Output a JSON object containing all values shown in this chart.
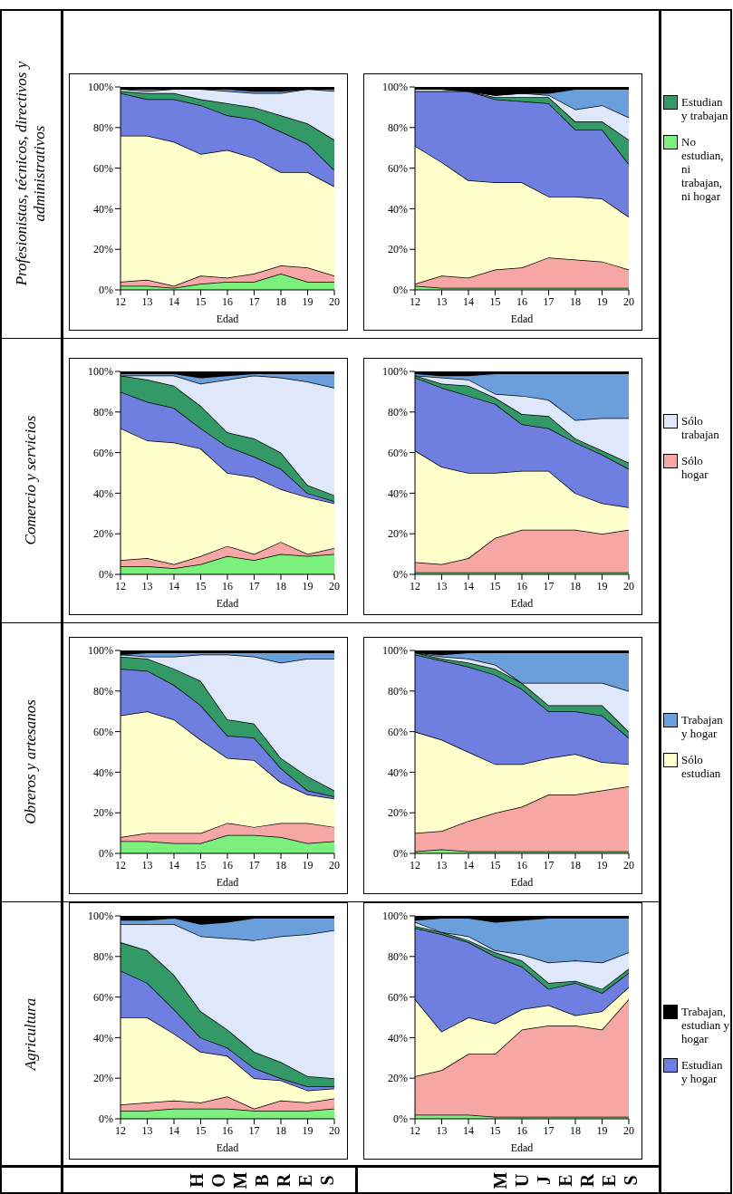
{
  "chart_data": [
    {
      "type": "area",
      "title": "Agricultura",
      "ylabel": "HOMBRES",
      "xlabel": "Edad",
      "stacked": true,
      "legend": "right",
      "x": [
        12,
        13,
        14,
        15,
        16,
        17,
        18,
        19,
        20
      ],
      "xlim": [
        12,
        20
      ],
      "xticks": [
        12,
        13,
        14,
        15,
        16,
        17,
        18,
        19,
        20
      ],
      "ylim": [
        0,
        100
      ],
      "yticks": [
        {
          "value": 0,
          "label": "0%"
        },
        {
          "value": 20,
          "label": "20%"
        },
        {
          "value": 40,
          "label": "40%"
        },
        {
          "value": 60,
          "label": "60%"
        },
        {
          "value": 80,
          "label": "80%"
        },
        {
          "value": 100,
          "label": "100%"
        }
      ],
      "series": [
        {
          "name": "No estudian, ni trabajan, ni hogar",
          "color": "#7cf07c",
          "values": [
            4,
            4,
            5,
            5,
            5,
            4,
            4,
            4,
            5
          ]
        },
        {
          "name": "Sólo hogar",
          "color": "#f7a6a6",
          "values": [
            3,
            4,
            4,
            3,
            6,
            1,
            5,
            4,
            5
          ]
        },
        {
          "name": "Sólo estudian",
          "color": "#ffffcc",
          "values": [
            43,
            42,
            33,
            25,
            20,
            15,
            10,
            6,
            5
          ]
        },
        {
          "name": "Estudian y hogar",
          "color": "#6f7fe0",
          "values": [
            23,
            17,
            12,
            7,
            4,
            5,
            1,
            2,
            1
          ]
        },
        {
          "name": "Estudian y trabajan",
          "color": "#339966",
          "values": [
            14,
            16,
            17,
            13,
            9,
            8,
            8,
            5,
            4
          ]
        },
        {
          "name": "Sólo trabajan",
          "color": "#dfe8fa",
          "values": [
            9,
            13,
            25,
            37,
            45,
            55,
            62,
            70,
            73
          ]
        },
        {
          "name": "Trabajan y hogar",
          "color": "#6a9fdc",
          "values": [
            2,
            2,
            3,
            6,
            8,
            11,
            9,
            8,
            6
          ]
        },
        {
          "name": "Trabajan, estudian y hogar",
          "color": "#000000",
          "values": [
            2,
            2,
            1,
            4,
            3,
            1,
            1,
            1,
            1
          ]
        }
      ]
    },
    {
      "type": "area",
      "title": "Obreros y artesanos",
      "xlabel": "Edad",
      "stacked": true,
      "x": [
        12,
        13,
        14,
        15,
        16,
        17,
        18,
        19,
        20
      ],
      "xlim": [
        12,
        20
      ],
      "xticks": [
        12,
        13,
        14,
        15,
        16,
        17,
        18,
        19,
        20
      ],
      "ylim": [
        0,
        100
      ],
      "yticks": [
        {
          "value": 0,
          "label": "0%"
        },
        {
          "value": 20,
          "label": "20%"
        },
        {
          "value": 40,
          "label": "40%"
        },
        {
          "value": 60,
          "label": "60%"
        },
        {
          "value": 80,
          "label": "80%"
        },
        {
          "value": 100,
          "label": "100%"
        }
      ],
      "series": [
        {
          "color": "#7cf07c",
          "values": [
            6,
            6,
            5,
            5,
            9,
            9,
            8,
            5,
            6
          ]
        },
        {
          "color": "#f7a6a6",
          "values": [
            2,
            4,
            5,
            5,
            6,
            4,
            7,
            10,
            7
          ]
        },
        {
          "color": "#ffffcc",
          "values": [
            60,
            60,
            56,
            46,
            32,
            33,
            20,
            14,
            14
          ]
        },
        {
          "color": "#6f7fe0",
          "values": [
            23,
            20,
            17,
            17,
            11,
            11,
            7,
            2,
            1
          ]
        },
        {
          "color": "#339966",
          "values": [
            6,
            6,
            8,
            12,
            8,
            7,
            5,
            7,
            3
          ]
        },
        {
          "color": "#dfe8fa",
          "values": [
            1,
            1,
            6,
            13,
            32,
            33,
            47,
            58,
            65
          ]
        },
        {
          "color": "#6a9fdc",
          "values": [
            0,
            2,
            2,
            1,
            1,
            2,
            5,
            3,
            3
          ]
        },
        {
          "color": "#000000",
          "values": [
            2,
            1,
            1,
            1,
            1,
            1,
            1,
            1,
            1
          ]
        }
      ]
    },
    {
      "type": "area",
      "title": "Comercio y servicios",
      "xlabel": "Edad",
      "stacked": true,
      "x": [
        12,
        13,
        14,
        15,
        16,
        17,
        18,
        19,
        20
      ],
      "xlim": [
        12,
        20
      ],
      "xticks": [
        12,
        13,
        14,
        15,
        16,
        17,
        18,
        19,
        20
      ],
      "ylim": [
        0,
        100
      ],
      "yticks": [
        {
          "value": 0,
          "label": "0%"
        },
        {
          "value": 20,
          "label": "20%"
        },
        {
          "value": 40,
          "label": "40%"
        },
        {
          "value": 60,
          "label": "60%"
        },
        {
          "value": 80,
          "label": "80%"
        },
        {
          "value": 100,
          "label": "100%"
        }
      ],
      "series": [
        {
          "color": "#7cf07c",
          "values": [
            4,
            4,
            3,
            5,
            9,
            7,
            10,
            9,
            10
          ]
        },
        {
          "color": "#f7a6a6",
          "values": [
            3,
            4,
            2,
            4,
            5,
            3,
            6,
            1,
            3
          ]
        },
        {
          "color": "#ffffcc",
          "values": [
            65,
            58,
            60,
            53,
            36,
            38,
            26,
            28,
            22
          ]
        },
        {
          "color": "#6f7fe0",
          "values": [
            18,
            19,
            17,
            10,
            13,
            10,
            10,
            2,
            1
          ]
        },
        {
          "color": "#339966",
          "values": [
            8,
            11,
            11,
            11,
            7,
            9,
            8,
            4,
            3
          ]
        },
        {
          "color": "#dfe8fa",
          "values": [
            0,
            2,
            5,
            11,
            26,
            31,
            37,
            51,
            53
          ]
        },
        {
          "color": "#6a9fdc",
          "values": [
            1,
            1,
            1,
            3,
            2,
            1,
            2,
            4,
            7
          ]
        },
        {
          "color": "#000000",
          "values": [
            1,
            1,
            1,
            3,
            2,
            1,
            1,
            1,
            1
          ]
        }
      ]
    },
    {
      "type": "area",
      "title": "Profesionistas, técnicos, directivos y administrativos",
      "xlabel": "Edad",
      "stacked": true,
      "x": [
        12,
        13,
        14,
        15,
        16,
        17,
        18,
        19,
        20
      ],
      "xlim": [
        12,
        20
      ],
      "xticks": [
        12,
        13,
        14,
        15,
        16,
        17,
        18,
        19,
        20
      ],
      "ylim": [
        0,
        100
      ],
      "yticks": [
        {
          "value": 0,
          "label": "0%"
        },
        {
          "value": 20,
          "label": "20%"
        },
        {
          "value": 40,
          "label": "40%"
        },
        {
          "value": 60,
          "label": "60%"
        },
        {
          "value": 80,
          "label": "80%"
        },
        {
          "value": 100,
          "label": "100%"
        }
      ],
      "series": [
        {
          "color": "#7cf07c",
          "values": [
            2,
            2,
            1,
            3,
            4,
            4,
            8,
            4,
            4
          ]
        },
        {
          "color": "#f7a6a6",
          "values": [
            2,
            3,
            1,
            4,
            2,
            4,
            4,
            7,
            3
          ]
        },
        {
          "color": "#ffffcc",
          "values": [
            72,
            71,
            71,
            60,
            63,
            57,
            46,
            47,
            44
          ]
        },
        {
          "color": "#6f7fe0",
          "values": [
            21,
            18,
            21,
            24,
            17,
            19,
            20,
            14,
            8
          ]
        },
        {
          "color": "#339966",
          "values": [
            1,
            3,
            3,
            3,
            6,
            6,
            8,
            10,
            15
          ]
        },
        {
          "color": "#dfe8fa",
          "values": [
            1,
            1,
            2,
            5,
            6,
            7,
            11,
            17,
            24
          ]
        },
        {
          "color": "#6a9fdc",
          "values": [
            0,
            1,
            0,
            0,
            1,
            1,
            1,
            0,
            1
          ]
        },
        {
          "color": "#000000",
          "values": [
            1,
            1,
            1,
            1,
            1,
            2,
            2,
            1,
            1
          ]
        }
      ]
    },
    {
      "type": "area",
      "ylabel": "MUJERES",
      "xlabel": "Edad",
      "stacked": true,
      "x": [
        12,
        13,
        14,
        15,
        16,
        17,
        18,
        19,
        20
      ],
      "xlim": [
        12,
        20
      ],
      "xticks": [
        12,
        13,
        14,
        15,
        16,
        17,
        18,
        19,
        20
      ],
      "ylim": [
        0,
        100
      ],
      "yticks": [
        {
          "value": 0,
          "label": "0%"
        },
        {
          "value": 20,
          "label": "20%"
        },
        {
          "value": 40,
          "label": "40%"
        },
        {
          "value": 60,
          "label": "60%"
        },
        {
          "value": 80,
          "label": "80%"
        },
        {
          "value": 100,
          "label": "100%"
        }
      ],
      "series": [
        {
          "color": "#7cf07c",
          "values": [
            2,
            2,
            2,
            1,
            1,
            1,
            1,
            1,
            1
          ]
        },
        {
          "color": "#f7a6a6",
          "values": [
            19,
            22,
            30,
            31,
            43,
            45,
            45,
            43,
            58
          ]
        },
        {
          "color": "#ffffcc",
          "values": [
            38,
            19,
            18,
            15,
            10,
            10,
            5,
            9,
            6
          ]
        },
        {
          "color": "#6f7fe0",
          "values": [
            35,
            48,
            37,
            33,
            21,
            8,
            16,
            9,
            7
          ]
        },
        {
          "color": "#339966",
          "values": [
            1,
            1,
            1,
            2,
            3,
            3,
            1,
            2,
            2
          ]
        },
        {
          "color": "#dfe8fa",
          "values": [
            2,
            0,
            2,
            1,
            3,
            10,
            10,
            13,
            8
          ]
        },
        {
          "color": "#6a9fdc",
          "values": [
            1,
            7,
            9,
            14,
            17,
            22,
            21,
            22,
            17
          ]
        },
        {
          "color": "#000000",
          "values": [
            2,
            1,
            1,
            3,
            2,
            1,
            1,
            1,
            1
          ]
        }
      ]
    },
    {
      "type": "area",
      "xlabel": "Edad",
      "stacked": true,
      "x": [
        12,
        13,
        14,
        15,
        16,
        17,
        18,
        19,
        20
      ],
      "xlim": [
        12,
        20
      ],
      "xticks": [
        12,
        13,
        14,
        15,
        16,
        17,
        18,
        19,
        20
      ],
      "ylim": [
        0,
        100
      ],
      "yticks": [
        {
          "value": 0,
          "label": "0%"
        },
        {
          "value": 20,
          "label": "20%"
        },
        {
          "value": 40,
          "label": "40%"
        },
        {
          "value": 60,
          "label": "60%"
        },
        {
          "value": 80,
          "label": "80%"
        },
        {
          "value": 100,
          "label": "100%"
        }
      ],
      "series": [
        {
          "color": "#7cf07c",
          "values": [
            1,
            2,
            1,
            1,
            1,
            1,
            1,
            1,
            1
          ]
        },
        {
          "color": "#f7a6a6",
          "values": [
            9,
            9,
            15,
            19,
            22,
            28,
            28,
            30,
            32
          ]
        },
        {
          "color": "#ffffcc",
          "values": [
            50,
            45,
            34,
            24,
            21,
            18,
            20,
            14,
            11
          ]
        },
        {
          "color": "#6f7fe0",
          "values": [
            38,
            39,
            42,
            44,
            37,
            23,
            21,
            23,
            13
          ]
        },
        {
          "color": "#339966",
          "values": [
            1,
            1,
            2,
            3,
            3,
            3,
            3,
            5,
            3
          ]
        },
        {
          "color": "#dfe8fa",
          "values": [
            0,
            1,
            2,
            2,
            0,
            11,
            11,
            11,
            20
          ]
        },
        {
          "color": "#6a9fdc",
          "values": [
            0,
            1,
            3,
            6,
            15,
            15,
            15,
            15,
            19
          ]
        },
        {
          "color": "#000000",
          "values": [
            1,
            2,
            1,
            1,
            1,
            1,
            1,
            1,
            1
          ]
        }
      ]
    },
    {
      "type": "area",
      "xlabel": "Edad",
      "stacked": true,
      "x": [
        12,
        13,
        14,
        15,
        16,
        17,
        18,
        19,
        20
      ],
      "xlim": [
        12,
        20
      ],
      "xticks": [
        12,
        13,
        14,
        15,
        16,
        17,
        18,
        19,
        20
      ],
      "ylim": [
        0,
        100
      ],
      "yticks": [
        {
          "value": 0,
          "label": "0%"
        },
        {
          "value": 20,
          "label": "20%"
        },
        {
          "value": 40,
          "label": "40%"
        },
        {
          "value": 60,
          "label": "60%"
        },
        {
          "value": 80,
          "label": "80%"
        },
        {
          "value": 100,
          "label": "100%"
        }
      ],
      "series": [
        {
          "color": "#7cf07c",
          "values": [
            1,
            1,
            1,
            1,
            1,
            1,
            1,
            1,
            1
          ]
        },
        {
          "color": "#f7a6a6",
          "values": [
            5,
            4,
            7,
            17,
            21,
            21,
            21,
            19,
            21
          ]
        },
        {
          "color": "#ffffcc",
          "values": [
            55,
            48,
            42,
            32,
            29,
            29,
            18,
            15,
            11
          ]
        },
        {
          "color": "#6f7fe0",
          "values": [
            36,
            39,
            38,
            34,
            23,
            21,
            25,
            24,
            19
          ]
        },
        {
          "color": "#339966",
          "values": [
            1,
            2,
            5,
            3,
            5,
            6,
            2,
            2,
            3
          ]
        },
        {
          "color": "#dfe8fa",
          "values": [
            0,
            3,
            3,
            2,
            9,
            8,
            9,
            16,
            22
          ]
        },
        {
          "color": "#6a9fdc",
          "values": [
            1,
            1,
            2,
            10,
            11,
            13,
            23,
            22,
            22
          ]
        },
        {
          "color": "#000000",
          "values": [
            1,
            2,
            2,
            1,
            1,
            1,
            1,
            1,
            1
          ]
        }
      ]
    },
    {
      "type": "area",
      "xlabel": "Edad",
      "stacked": true,
      "x": [
        12,
        13,
        14,
        15,
        16,
        17,
        18,
        19,
        20
      ],
      "xlim": [
        12,
        20
      ],
      "xticks": [
        12,
        13,
        14,
        15,
        16,
        17,
        18,
        19,
        20
      ],
      "ylim": [
        0,
        100
      ],
      "yticks": [
        {
          "value": 0,
          "label": "0%"
        },
        {
          "value": 20,
          "label": "20%"
        },
        {
          "value": 40,
          "label": "40%"
        },
        {
          "value": 60,
          "label": "60%"
        },
        {
          "value": 80,
          "label": "80%"
        },
        {
          "value": 100,
          "label": "100%"
        }
      ],
      "series": [
        {
          "color": "#7cf07c",
          "values": [
            2,
            1,
            1,
            1,
            1,
            1,
            1,
            1,
            1
          ]
        },
        {
          "color": "#f7a6a6",
          "values": [
            1,
            6,
            5,
            9,
            10,
            15,
            14,
            13,
            9
          ]
        },
        {
          "color": "#ffffcc",
          "values": [
            68,
            56,
            48,
            43,
            42,
            30,
            31,
            31,
            26
          ]
        },
        {
          "color": "#6f7fe0",
          "values": [
            27,
            35,
            44,
            41,
            40,
            46,
            33,
            34,
            26
          ]
        },
        {
          "color": "#339966",
          "values": [
            0,
            0,
            0,
            1,
            2,
            3,
            4,
            4,
            12
          ]
        },
        {
          "color": "#dfe8fa",
          "values": [
            1,
            1,
            0,
            1,
            2,
            1,
            6,
            8,
            11
          ]
        },
        {
          "color": "#6a9fdc",
          "values": [
            0,
            0,
            0,
            0,
            0,
            1,
            10,
            8,
            14
          ]
        },
        {
          "color": "#000000",
          "values": [
            1,
            1,
            2,
            4,
            3,
            3,
            1,
            1,
            1
          ]
        }
      ]
    }
  ]
}
